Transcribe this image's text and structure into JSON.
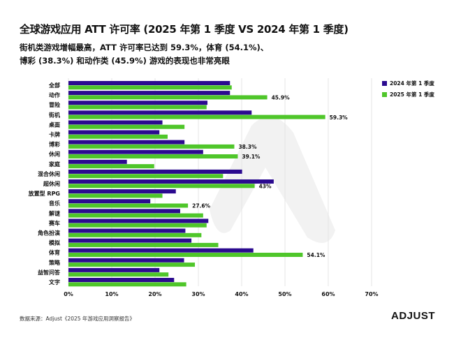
{
  "title": "全球游戏应用 ATT 许可率 (2025 年第 1 季度 VS 2024 年第 1 季度)",
  "subtitle": [
    "街机类游戏增幅最高，ATT 许可率已达到 59.3%，体育 (54.1%)、",
    "博彩 (38.3%) 和动作类 (45.9%) 游戏的表现也非常亮眼"
  ],
  "footer": {
    "source": "数据来源：Adjust《2025 年游戏应用洞察报告》",
    "logo": "ADJUST"
  },
  "colors": {
    "2024": "#2b0a8f",
    "2025": "#4fc62a",
    "grid": "#e4e4e4"
  },
  "chart_data": {
    "type": "bar",
    "orientation": "horizontal",
    "categories": [
      "全部",
      "动作",
      "冒险",
      "街机",
      "桌面",
      "卡牌",
      "博彩",
      "休闲",
      "家庭",
      "混合休闲",
      "超休闲",
      "放置型 RPG",
      "音乐",
      "解谜",
      "赛车",
      "角色扮演",
      "模拟",
      "体育",
      "策略",
      "益智问答",
      "文字"
    ],
    "series": [
      {
        "name": "2024 年第 1 季度",
        "values": [
          37.3,
          37.3,
          32.1,
          42.3,
          21.7,
          21.0,
          26.8,
          31.1,
          13.5,
          40.1,
          47.4,
          24.8,
          18.9,
          25.8,
          32.3,
          27.0,
          28.4,
          42.7,
          26.7,
          21.0,
          24.4
        ]
      },
      {
        "name": "2025 年第 1 季度",
        "values": [
          37.7,
          45.9,
          31.9,
          59.3,
          26.8,
          22.9,
          38.3,
          39.1,
          19.8,
          35.7,
          43.0,
          21.7,
          27.6,
          31.1,
          31.9,
          30.7,
          34.6,
          54.1,
          29.2,
          23.1,
          27.2
        ]
      }
    ],
    "data_labels": {
      "动作": "45.9%",
      "街机": "59.3%",
      "博彩": "38.3%",
      "休闲": "39.1%",
      "超休闲": "43%",
      "音乐": "27.6%",
      "体育": "54.1%"
    },
    "xlim": [
      0,
      70
    ],
    "xticks": [
      "0%",
      "10%",
      "20%",
      "30%",
      "40%",
      "50%",
      "60%",
      "70%"
    ],
    "grid": true,
    "legend": "top-right"
  }
}
